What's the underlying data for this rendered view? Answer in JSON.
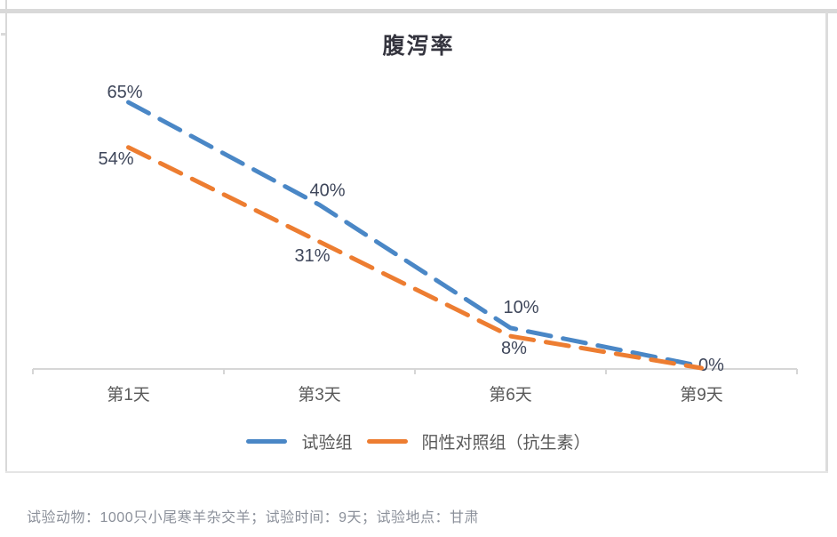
{
  "chart_data": {
    "type": "line",
    "title": "腹泻率",
    "categories": [
      "第1天",
      "第3天",
      "第6天",
      "第9天"
    ],
    "series": [
      {
        "name": "试验组",
        "color": "#4a87c6",
        "values": [
          65,
          40,
          10,
          0
        ],
        "labels": [
          "65%",
          "40%",
          "10%",
          "0%"
        ]
      },
      {
        "name": "阳性对照组（抗生素）",
        "color": "#ed7d31",
        "values": [
          54,
          31,
          8,
          0
        ],
        "labels": [
          "54%",
          "31%",
          "8%",
          ""
        ]
      }
    ],
    "ylim": [
      0,
      70
    ],
    "y_axis_visible": false,
    "grid": false,
    "legend_position": "bottom",
    "line_style": "dashed",
    "data_label_color": "#3e465a",
    "axis_label_color": "#595959",
    "axis_line_color": "#d6d6d6"
  },
  "footer": {
    "note": "试验动物：1000只小尾寒羊杂交羊；试验时间：9天；试验地点：甘肃"
  }
}
